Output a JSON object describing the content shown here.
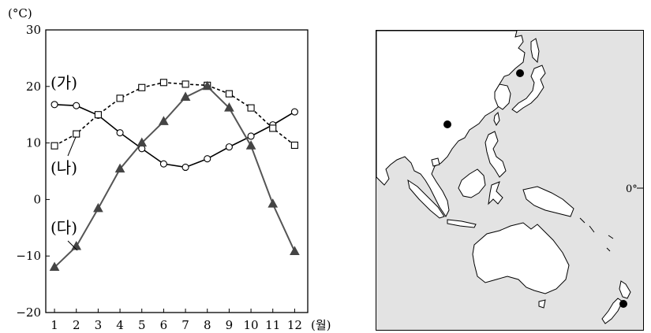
{
  "chart_data": {
    "type": "line",
    "unit_label": "(°C)",
    "x_unit_label": "(월)",
    "x": [
      1,
      2,
      3,
      4,
      5,
      6,
      7,
      8,
      9,
      10,
      11,
      12
    ],
    "x_tick_labels": [
      "1",
      "2",
      "3",
      "4",
      "5",
      "6",
      "7",
      "8",
      "9",
      "10",
      "11",
      "12"
    ],
    "ylim": [
      -20,
      30
    ],
    "y_ticks": [
      -20,
      -10,
      0,
      10,
      20,
      30
    ],
    "y_tick_labels": [
      "−20",
      "−10",
      "0",
      "10",
      "20",
      "30"
    ],
    "grid": false,
    "series": [
      {
        "name": "(가)",
        "marker": "circle",
        "line": "solid",
        "values": [
          16.8,
          16.6,
          14.9,
          11.8,
          9.0,
          6.3,
          5.7,
          7.2,
          9.3,
          11.2,
          13.2,
          15.5
        ]
      },
      {
        "name": "(나)",
        "marker": "square",
        "line": "dashed",
        "values": [
          9.5,
          11.6,
          15.0,
          17.9,
          19.8,
          20.7,
          20.4,
          20.2,
          18.7,
          16.2,
          12.6,
          9.6
        ]
      },
      {
        "name": "(다)",
        "marker": "triangle",
        "line": "solid",
        "color": "#555555",
        "values": [
          -12.0,
          -8.3,
          -1.6,
          5.4,
          10.0,
          13.8,
          18.1,
          20.0,
          16.2,
          9.5,
          -0.8,
          -9.2
        ]
      }
    ]
  },
  "map": {
    "equator_label": "0°",
    "land_color": "#ffffff",
    "sea_color": "#e3e3e3",
    "points": [
      {
        "name": "northeast-asia-city"
      },
      {
        "name": "south-china-city"
      },
      {
        "name": "new-zealand-city"
      }
    ]
  }
}
